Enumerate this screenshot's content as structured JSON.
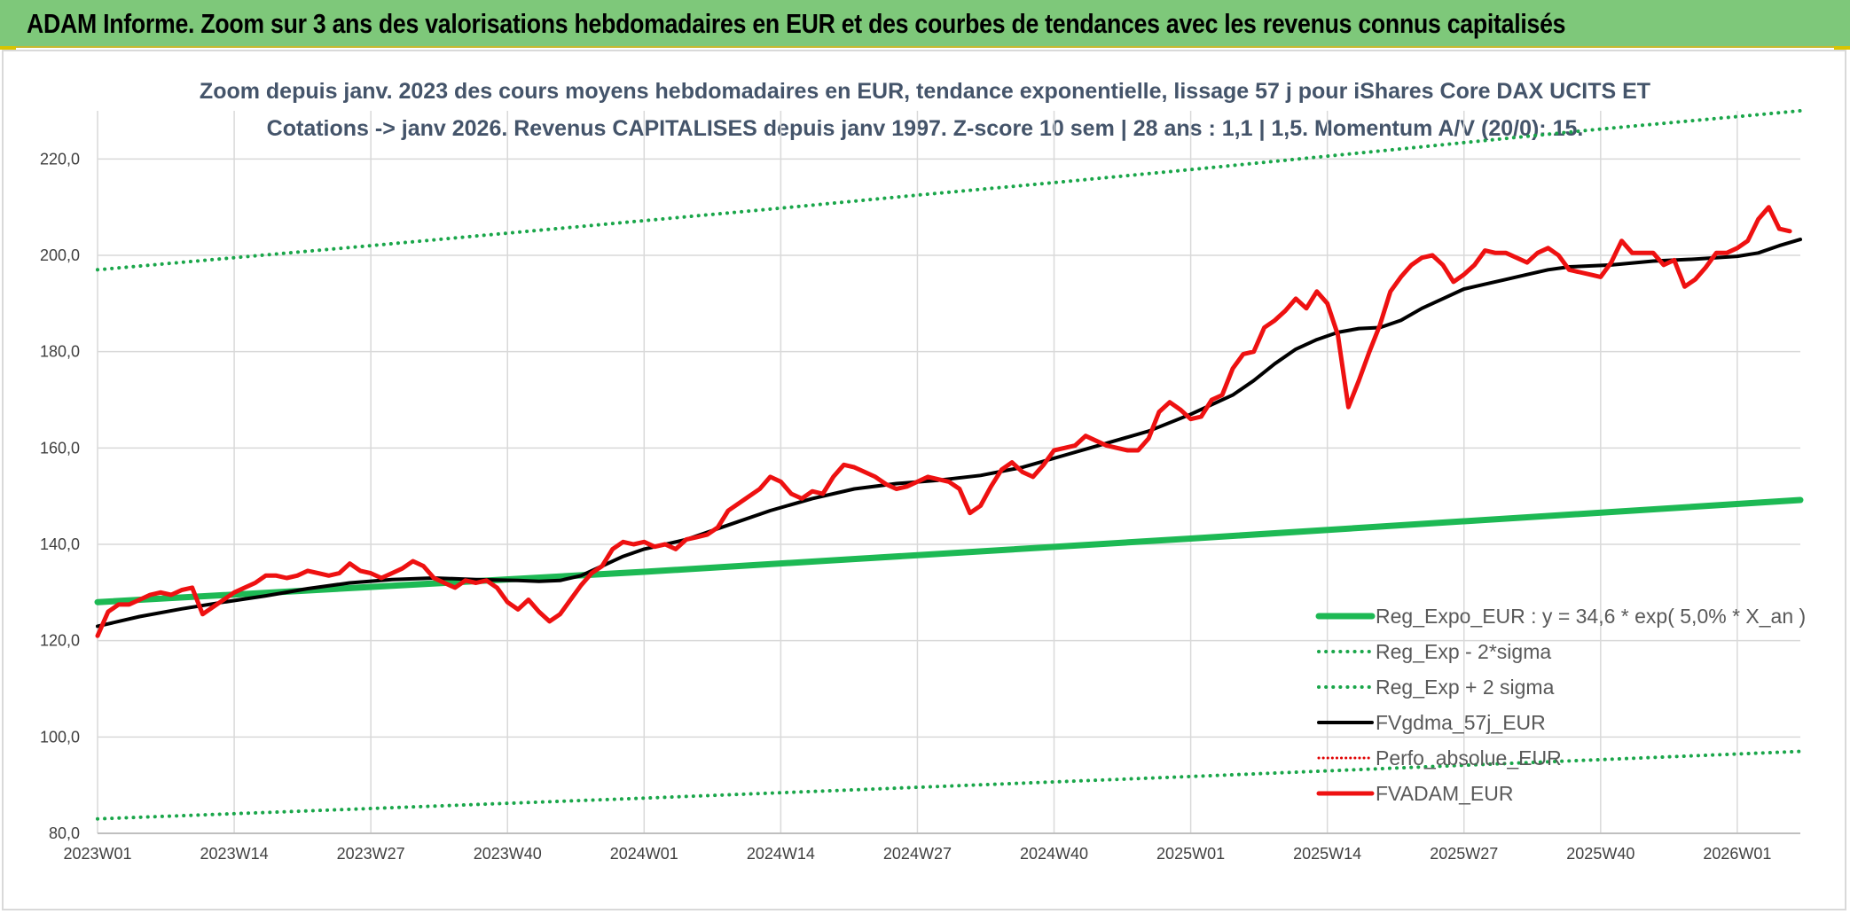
{
  "banner": {
    "title": "ADAM Informe. Zoom sur 3 ans des valorisations hebdomadaires en EUR et des courbes de tendances avec les revenus connus capitalisés"
  },
  "chart_data": {
    "type": "line",
    "title_line1": "Zoom depuis janv. 2023 des cours moyens hebdomadaires en EUR, tendance exponentielle, lissage 57 j pour iShares Core DAX UCITS ET",
    "title_line2": "Cotations -> janv 2026. Revenus CAPITALISES depuis janv 1997. Z-score 10 sem | 28 ans : 1,1 | 1,5. Momentum A/V (20/0): 15.",
    "x_tick_labels": [
      "2023W01",
      "2023W14",
      "2023W27",
      "2023W40",
      "2024W01",
      "2024W14",
      "2024W27",
      "2024W40",
      "2025W01",
      "2025W14",
      "2025W27",
      "2025W40",
      "2026W01"
    ],
    "y_tick_labels": [
      "80,0",
      "100,0",
      "120,0",
      "140,0",
      "160,0",
      "180,0",
      "200,0",
      "220,0"
    ],
    "ylim": [
      80,
      230
    ],
    "y_ticks": [
      80,
      100,
      120,
      140,
      160,
      180,
      200,
      220
    ],
    "x_range_weeks": [
      0,
      162
    ],
    "grid": true,
    "legend_position": "bottom-right",
    "series": [
      {
        "name": "Reg_Expo_EUR : y = 34,6 * exp( 5,0% *  X_an )",
        "color": "#1db954",
        "style": "solid",
        "width": 7,
        "points": [
          [
            0,
            128.0
          ],
          [
            52,
            134.3
          ],
          [
            104,
            141.2
          ],
          [
            162,
            149.2
          ]
        ]
      },
      {
        "name": "Reg_Exp - 2*sigma",
        "color": "#1aa64a",
        "style": "dotted",
        "width": 4,
        "points": [
          [
            0,
            83.0
          ],
          [
            52,
            87.3
          ],
          [
            104,
            91.8
          ],
          [
            162,
            97.0
          ]
        ]
      },
      {
        "name": "Reg_Exp + 2 sigma",
        "color": "#1aa64a",
        "style": "dotted",
        "width": 4,
        "points": [
          [
            0,
            197.0
          ],
          [
            13,
            199.5
          ],
          [
            26,
            202.0
          ],
          [
            39,
            204.6
          ],
          [
            52,
            207.2
          ],
          [
            65,
            209.8
          ],
          [
            78,
            212.5
          ],
          [
            91,
            215.1
          ],
          [
            104,
            217.8
          ],
          [
            125,
            222.3
          ],
          [
            142,
            226.0
          ],
          [
            162,
            230.0
          ]
        ]
      },
      {
        "name": "FVgdma_57j_EUR",
        "color": "#000000",
        "style": "solid",
        "width": 4,
        "points": [
          [
            0,
            123.0
          ],
          [
            4,
            125.0
          ],
          [
            8,
            126.6
          ],
          [
            12,
            128.0
          ],
          [
            16,
            129.3
          ],
          [
            20,
            130.8
          ],
          [
            24,
            132.0
          ],
          [
            28,
            132.7
          ],
          [
            32,
            133.0
          ],
          [
            36,
            132.7
          ],
          [
            40,
            132.5
          ],
          [
            42,
            132.3
          ],
          [
            44,
            132.5
          ],
          [
            46,
            133.5
          ],
          [
            48,
            135.5
          ],
          [
            50,
            137.5
          ],
          [
            52,
            139.0
          ],
          [
            56,
            141.0
          ],
          [
            60,
            144.0
          ],
          [
            64,
            147.0
          ],
          [
            68,
            149.5
          ],
          [
            72,
            151.5
          ],
          [
            76,
            152.6
          ],
          [
            80,
            153.3
          ],
          [
            84,
            154.3
          ],
          [
            88,
            156.0
          ],
          [
            92,
            158.5
          ],
          [
            96,
            161.0
          ],
          [
            100,
            163.5
          ],
          [
            104,
            167.0
          ],
          [
            106,
            169.0
          ],
          [
            108,
            171.0
          ],
          [
            110,
            174.0
          ],
          [
            112,
            177.5
          ],
          [
            114,
            180.5
          ],
          [
            116,
            182.5
          ],
          [
            118,
            184.0
          ],
          [
            120,
            184.8
          ],
          [
            122,
            185.0
          ],
          [
            124,
            186.5
          ],
          [
            126,
            189.0
          ],
          [
            128,
            191.0
          ],
          [
            130,
            193.0
          ],
          [
            132,
            194.0
          ],
          [
            134,
            195.0
          ],
          [
            136,
            196.0
          ],
          [
            138,
            197.0
          ],
          [
            140,
            197.6
          ],
          [
            144,
            198.0
          ],
          [
            148,
            198.8
          ],
          [
            152,
            199.2
          ],
          [
            156,
            199.8
          ],
          [
            158,
            200.5
          ],
          [
            160,
            202.0
          ],
          [
            162,
            203.3
          ]
        ]
      },
      {
        "name": "Perfo_absolue_EUR",
        "color": "#e00000",
        "style": "dotted",
        "width": 3,
        "points": []
      },
      {
        "name": "FVADAM_EUR",
        "color": "#ee1111",
        "style": "solid",
        "width": 5,
        "points": [
          [
            0,
            121.0
          ],
          [
            1,
            126.0
          ],
          [
            2,
            127.5
          ],
          [
            3,
            127.5
          ],
          [
            4,
            128.5
          ],
          [
            5,
            129.5
          ],
          [
            6,
            130.0
          ],
          [
            7,
            129.5
          ],
          [
            8,
            130.5
          ],
          [
            9,
            131.0
          ],
          [
            10,
            125.5
          ],
          [
            11,
            127.0
          ],
          [
            12,
            128.5
          ],
          [
            13,
            130.0
          ],
          [
            14,
            131.0
          ],
          [
            15,
            132.0
          ],
          [
            16,
            133.5
          ],
          [
            17,
            133.5
          ],
          [
            18,
            133.0
          ],
          [
            19,
            133.5
          ],
          [
            20,
            134.5
          ],
          [
            21,
            134.0
          ],
          [
            22,
            133.5
          ],
          [
            23,
            134.0
          ],
          [
            24,
            136.0
          ],
          [
            25,
            134.5
          ],
          [
            26,
            134.0
          ],
          [
            27,
            133.0
          ],
          [
            28,
            134.0
          ],
          [
            29,
            135.0
          ],
          [
            30,
            136.5
          ],
          [
            31,
            135.5
          ],
          [
            32,
            133.0
          ],
          [
            33,
            132.0
          ],
          [
            34,
            131.0
          ],
          [
            35,
            132.5
          ],
          [
            36,
            132.0
          ],
          [
            37,
            132.5
          ],
          [
            38,
            131.0
          ],
          [
            39,
            128.0
          ],
          [
            40,
            126.5
          ],
          [
            41,
            128.5
          ],
          [
            42,
            126.0
          ],
          [
            43,
            124.0
          ],
          [
            44,
            125.5
          ],
          [
            45,
            128.5
          ],
          [
            46,
            131.5
          ],
          [
            47,
            134.0
          ],
          [
            48,
            135.5
          ],
          [
            49,
            139.0
          ],
          [
            50,
            140.5
          ],
          [
            51,
            140.0
          ],
          [
            52,
            140.5
          ],
          [
            53,
            139.5
          ],
          [
            54,
            140.0
          ],
          [
            55,
            139.0
          ],
          [
            56,
            141.0
          ],
          [
            57,
            141.5
          ],
          [
            58,
            142.0
          ],
          [
            59,
            143.5
          ],
          [
            60,
            147.0
          ],
          [
            61,
            148.5
          ],
          [
            62,
            150.0
          ],
          [
            63,
            151.5
          ],
          [
            64,
            154.0
          ],
          [
            65,
            153.0
          ],
          [
            66,
            150.5
          ],
          [
            67,
            149.5
          ],
          [
            68,
            151.0
          ],
          [
            69,
            150.5
          ],
          [
            70,
            154.0
          ],
          [
            71,
            156.5
          ],
          [
            72,
            156.0
          ],
          [
            73,
            155.0
          ],
          [
            74,
            154.0
          ],
          [
            75,
            152.5
          ],
          [
            76,
            151.5
          ],
          [
            77,
            152.0
          ],
          [
            78,
            153.0
          ],
          [
            79,
            154.0
          ],
          [
            80,
            153.5
          ],
          [
            81,
            153.0
          ],
          [
            82,
            151.5
          ],
          [
            83,
            146.5
          ],
          [
            84,
            148.0
          ],
          [
            85,
            152.0
          ],
          [
            86,
            155.5
          ],
          [
            87,
            157.0
          ],
          [
            88,
            155.0
          ],
          [
            89,
            154.0
          ],
          [
            90,
            156.5
          ],
          [
            91,
            159.5
          ],
          [
            92,
            160.0
          ],
          [
            93,
            160.5
          ],
          [
            94,
            162.5
          ],
          [
            95,
            161.5
          ],
          [
            96,
            160.5
          ],
          [
            97,
            160.0
          ],
          [
            98,
            159.5
          ],
          [
            99,
            159.5
          ],
          [
            100,
            162.0
          ],
          [
            101,
            167.5
          ],
          [
            102,
            169.5
          ],
          [
            103,
            168.0
          ],
          [
            104,
            166.0
          ],
          [
            105,
            166.5
          ],
          [
            106,
            170.0
          ],
          [
            107,
            171.0
          ],
          [
            108,
            176.5
          ],
          [
            109,
            179.5
          ],
          [
            110,
            180.0
          ],
          [
            111,
            185.0
          ],
          [
            112,
            186.5
          ],
          [
            113,
            188.5
          ],
          [
            114,
            191.0
          ],
          [
            115,
            189.0
          ],
          [
            116,
            192.5
          ],
          [
            117,
            190.0
          ],
          [
            118,
            183.5
          ],
          [
            119,
            168.5
          ],
          [
            120,
            174.0
          ],
          [
            121,
            180.0
          ],
          [
            122,
            185.5
          ],
          [
            123,
            192.5
          ],
          [
            124,
            195.5
          ],
          [
            125,
            198.0
          ],
          [
            126,
            199.5
          ],
          [
            127,
            200.0
          ],
          [
            128,
            198.0
          ],
          [
            129,
            194.5
          ],
          [
            130,
            196.0
          ],
          [
            131,
            198.0
          ],
          [
            132,
            201.0
          ],
          [
            133,
            200.5
          ],
          [
            134,
            200.5
          ],
          [
            135,
            199.5
          ],
          [
            136,
            198.5
          ],
          [
            137,
            200.5
          ],
          [
            138,
            201.5
          ],
          [
            139,
            200.0
          ],
          [
            140,
            197.0
          ],
          [
            141,
            196.5
          ],
          [
            142,
            196.0
          ],
          [
            143,
            195.5
          ],
          [
            144,
            198.5
          ],
          [
            145,
            203.0
          ],
          [
            146,
            200.5
          ],
          [
            147,
            200.5
          ],
          [
            148,
            200.5
          ],
          [
            149,
            198.0
          ],
          [
            150,
            199.0
          ],
          [
            151,
            193.5
          ],
          [
            152,
            195.0
          ],
          [
            153,
            197.5
          ],
          [
            154,
            200.5
          ],
          [
            155,
            200.5
          ],
          [
            156,
            201.5
          ],
          [
            157,
            203.0
          ],
          [
            158,
            207.5
          ],
          [
            159,
            210.0
          ],
          [
            160,
            205.5
          ],
          [
            161,
            205.0
          ]
        ]
      }
    ]
  }
}
